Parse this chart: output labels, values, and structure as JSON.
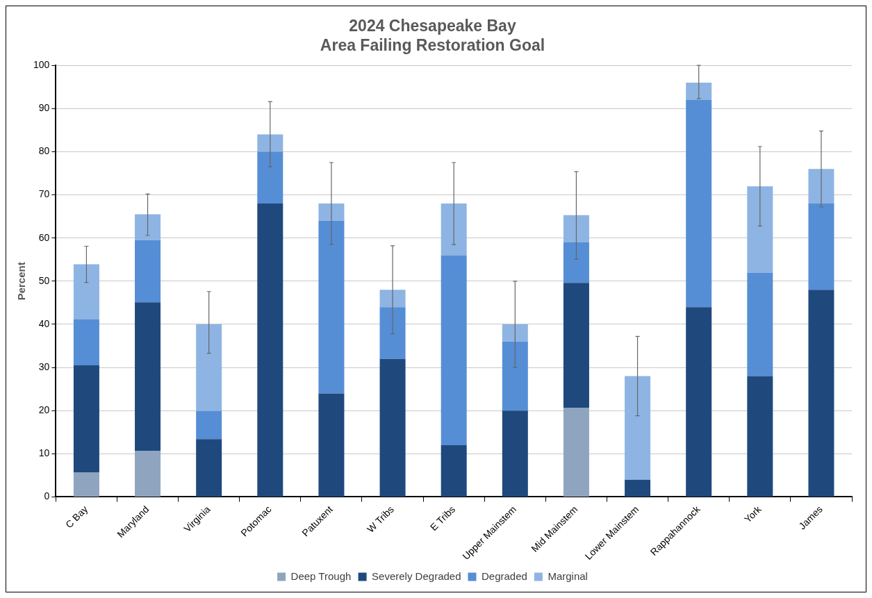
{
  "chart_data": {
    "type": "bar",
    "title": "2024 Chesapeake Bay\nArea Failing Restoration Goal",
    "ylabel": "Percent",
    "categories": [
      "C Bay",
      "Maryland",
      "Virginia",
      "Potomac",
      "Patuxent",
      "W Tribs",
      "E Tribs",
      "Upper Mainstem",
      "Mid Mainstem",
      "Lower Mainstem",
      "Rappahannock",
      "York",
      "James"
    ],
    "stacked": true,
    "ylim": [
      0,
      100
    ],
    "yticks": [
      0,
      10,
      20,
      30,
      40,
      50,
      60,
      70,
      80,
      90,
      100
    ],
    "grid": "y",
    "legend": "bottom",
    "series": [
      {
        "name": "Deep Trough",
        "color": "#8fa4be",
        "values": [
          5.7,
          10.7,
          null,
          null,
          null,
          null,
          null,
          null,
          20.7,
          null,
          null,
          null,
          null
        ]
      },
      {
        "name": "Severely Degraded",
        "color": "#1f497d",
        "values": [
          24.8,
          34.4,
          13.4,
          68,
          24,
          32,
          12,
          20,
          28.9,
          4,
          44,
          28,
          48
        ]
      },
      {
        "name": "Degraded",
        "color": "#558ed5",
        "values": [
          10.7,
          14.4,
          6.5,
          12,
          40,
          12,
          44,
          16,
          9.4,
          null,
          48,
          24,
          20
        ]
      },
      {
        "name": "Marginal",
        "color": "#8eb4e3",
        "values": [
          12.7,
          6.0,
          20.1,
          4,
          4,
          4,
          12,
          4,
          6.3,
          24,
          4,
          20,
          8
        ],
        "errors": [
          [
            49.7,
            58.1
          ],
          [
            60.6,
            70.2
          ],
          [
            33.3,
            47.6
          ],
          [
            76.5,
            91.6
          ],
          [
            58.5,
            77.5
          ],
          [
            37.8,
            58.2
          ],
          [
            58.5,
            77.5
          ],
          [
            30,
            50
          ],
          [
            55.1,
            75.4
          ],
          [
            18.8,
            37.2
          ],
          [
            92.3,
            100
          ],
          [
            62.8,
            81.2
          ],
          [
            67.2,
            84.8
          ]
        ]
      }
    ]
  }
}
